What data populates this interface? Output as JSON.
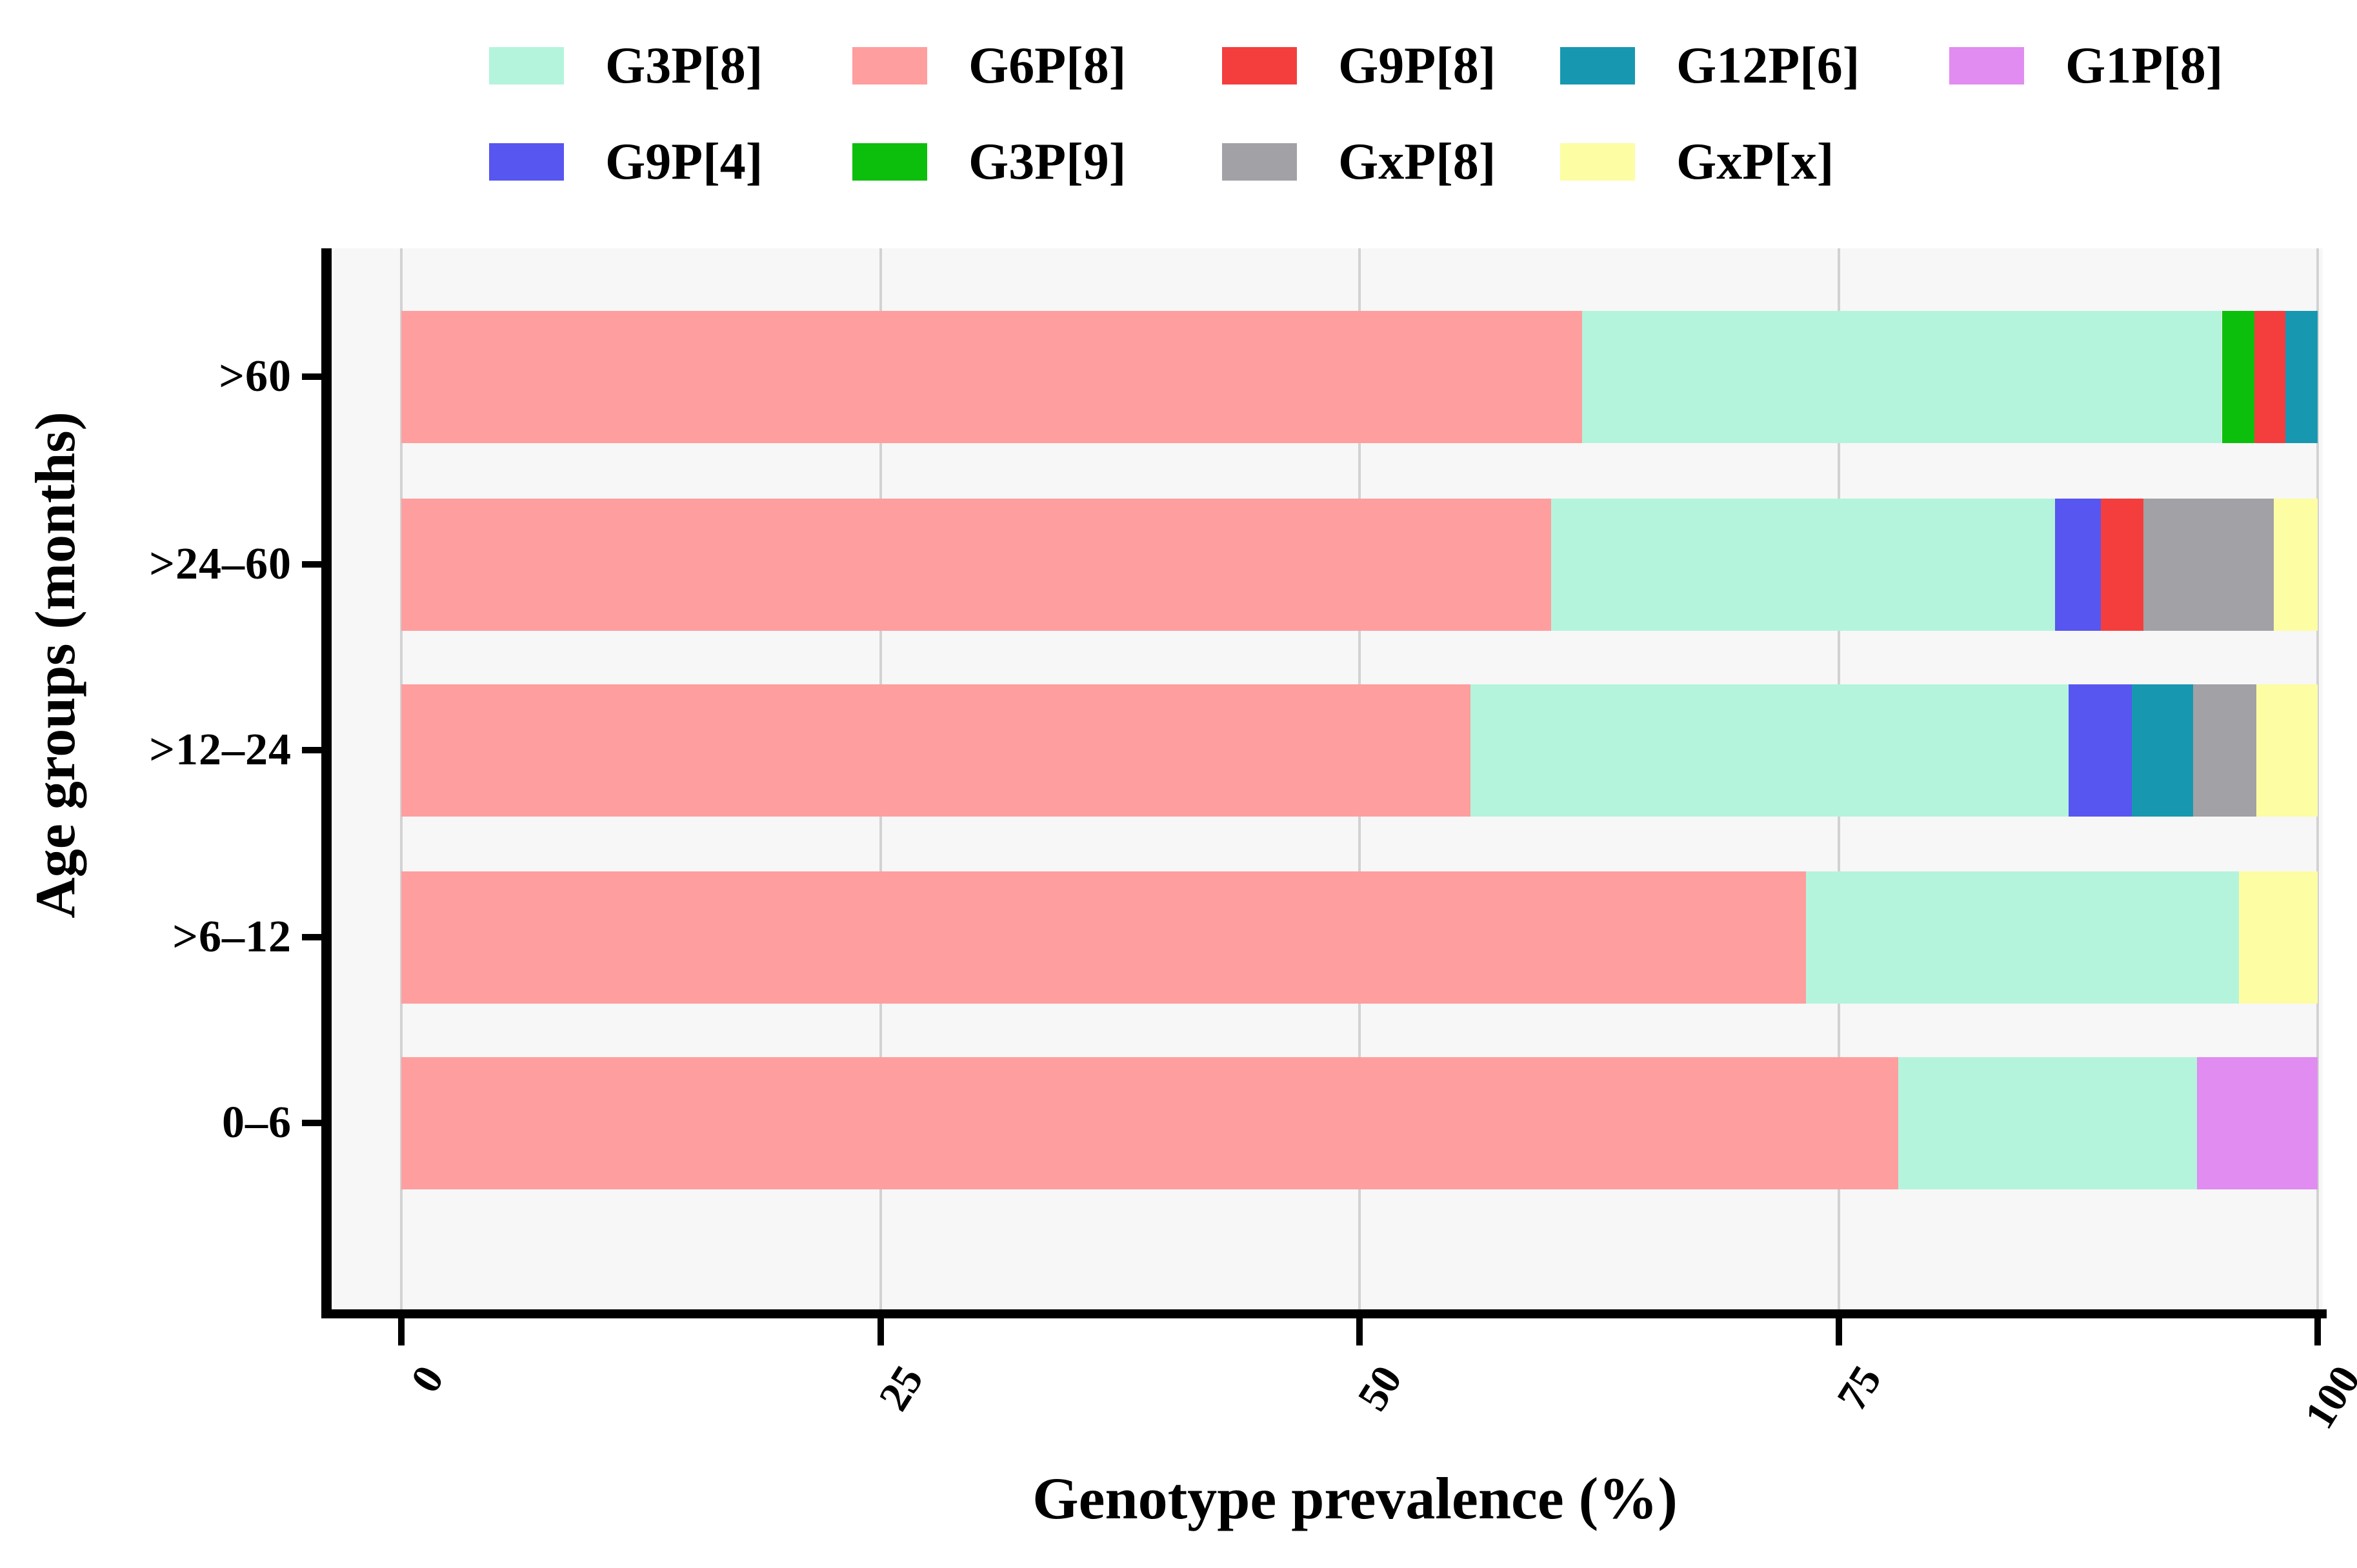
{
  "figure": {
    "x_axis_title": "Genotype prevalence (%)",
    "y_axis_title": "Age groups (months)"
  },
  "legend": {
    "rows": [
      [
        {
          "label": "G3P[8]",
          "color": "#B5F4DC"
        },
        {
          "label": "G6P[8]",
          "color": "#FF9E9E"
        },
        {
          "label": "G9P[8]",
          "color": "#F43E3E"
        },
        {
          "label": "G12P[6]",
          "color": "#1798B0"
        },
        {
          "label": "G1P[8]",
          "color": "#E08CF0"
        }
      ],
      [
        {
          "label": "G9P[4]",
          "color": "#5756F0"
        },
        {
          "label": "G3P[9]",
          "color": "#0DBF0D"
        },
        {
          "label": "GxP[8]",
          "color": "#A1A1A6"
        },
        {
          "label": "GxP[x]",
          "color": "#FDFDA4"
        }
      ]
    ]
  },
  "chart_data": {
    "type": "bar",
    "orientation": "horizontal",
    "stacked": true,
    "title": "",
    "xlabel": "Genotype prevalence (%)",
    "ylabel": "Age groups (months)",
    "xlim": [
      0,
      100
    ],
    "x_ticks": [
      0,
      25,
      50,
      75,
      100
    ],
    "grid": true,
    "legend_position": "top",
    "categories": [
      ">60",
      ">24–60",
      ">12–24",
      ">6–12",
      "0–6"
    ],
    "series": [
      {
        "name": "G3P[8]",
        "values": [
          33.4,
          26.3,
          31.2,
          22.6,
          15.6
        ]
      },
      {
        "name": "G6P[8]",
        "values": [
          61.6,
          60.0,
          55.8,
          73.3,
          78.1
        ]
      },
      {
        "name": "G9P[8]",
        "values": [
          1.6,
          2.2,
          0,
          0,
          0
        ]
      },
      {
        "name": "G12P[6]",
        "values": [
          1.7,
          0,
          3.2,
          0,
          0
        ]
      },
      {
        "name": "G1P[8]",
        "values": [
          0,
          0,
          0,
          0,
          6.3
        ]
      },
      {
        "name": "G9P[4]",
        "values": [
          0,
          2.4,
          3.3,
          0,
          0
        ]
      },
      {
        "name": "G3P[9]",
        "values": [
          1.7,
          0,
          0,
          0,
          0
        ]
      },
      {
        "name": "GxP[8]",
        "values": [
          0,
          6.8,
          3.3,
          0,
          0
        ]
      },
      {
        "name": "GxP[x]",
        "values": [
          0,
          2.3,
          3.2,
          4.1,
          0
        ]
      }
    ],
    "bars": [
      {
        "label": ">60",
        "segments": [
          {
            "genotype": "G6P[8]",
            "value": 61.6
          },
          {
            "genotype": "G3P[8]",
            "value": 33.4
          },
          {
            "genotype": "G3P[9]",
            "value": 1.7
          },
          {
            "genotype": "G9P[8]",
            "value": 1.6
          },
          {
            "genotype": "G12P[6]",
            "value": 1.7
          }
        ]
      },
      {
        "label": ">24–60",
        "segments": [
          {
            "genotype": "G6P[8]",
            "value": 60.0
          },
          {
            "genotype": "G3P[8]",
            "value": 26.3
          },
          {
            "genotype": "G9P[4]",
            "value": 2.4
          },
          {
            "genotype": "G9P[8]",
            "value": 2.2
          },
          {
            "genotype": "GxP[8]",
            "value": 6.8
          },
          {
            "genotype": "GxP[x]",
            "value": 2.3
          }
        ]
      },
      {
        "label": ">12–24",
        "segments": [
          {
            "genotype": "G6P[8]",
            "value": 55.8
          },
          {
            "genotype": "G3P[8]",
            "value": 31.2
          },
          {
            "genotype": "G9P[4]",
            "value": 3.3
          },
          {
            "genotype": "G12P[6]",
            "value": 3.2
          },
          {
            "genotype": "GxP[8]",
            "value": 3.3
          },
          {
            "genotype": "GxP[x]",
            "value": 3.2
          }
        ]
      },
      {
        "label": ">6–12",
        "segments": [
          {
            "genotype": "G6P[8]",
            "value": 73.3
          },
          {
            "genotype": "G3P[8]",
            "value": 22.6
          },
          {
            "genotype": "GxP[x]",
            "value": 4.1
          }
        ]
      },
      {
        "label": "0–6",
        "segments": [
          {
            "genotype": "G6P[8]",
            "value": 78.1
          },
          {
            "genotype": "G3P[8]",
            "value": 15.6
          },
          {
            "genotype": "G1P[8]",
            "value": 6.3
          }
        ]
      }
    ]
  }
}
